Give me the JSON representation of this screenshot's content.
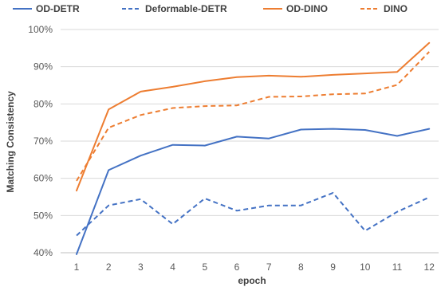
{
  "chart_data": {
    "type": "line",
    "xlabel": "epoch",
    "ylabel": "Matching Consistency",
    "x": [
      1,
      2,
      3,
      4,
      5,
      6,
      7,
      8,
      9,
      10,
      11,
      12
    ],
    "xtick_labels": [
      "1",
      "2",
      "3",
      "4",
      "5",
      "6",
      "7",
      "8",
      "9",
      "10",
      "11",
      "12"
    ],
    "ylim": [
      40,
      100
    ],
    "yticks": [
      40,
      50,
      60,
      70,
      80,
      90,
      100
    ],
    "ytick_labels": [
      "40%",
      "50%",
      "60%",
      "70%",
      "80%",
      "90%",
      "100%"
    ],
    "grid": "horizontal",
    "legend_position": "top",
    "series": [
      {
        "name": "OD-DETR",
        "color": "#4472C4",
        "dash": "solid",
        "values": [
          39.6,
          62.2,
          66.1,
          69.0,
          68.8,
          71.2,
          70.7,
          73.1,
          73.3,
          73.0,
          71.4,
          73.3
        ]
      },
      {
        "name": "Deformable-DETR",
        "color": "#4472C4",
        "dash": "dashed",
        "values": [
          44.6,
          52.7,
          54.4,
          47.7,
          54.6,
          51.3,
          52.7,
          52.7,
          56.1,
          45.9,
          51.0,
          54.9
        ]
      },
      {
        "name": "OD-DINO",
        "color": "#ED7D31",
        "dash": "solid",
        "values": [
          56.7,
          78.5,
          83.3,
          84.6,
          86.1,
          87.2,
          87.6,
          87.3,
          87.8,
          88.2,
          88.6,
          96.4
        ]
      },
      {
        "name": "DINO",
        "color": "#ED7D31",
        "dash": "dashed",
        "values": [
          59.3,
          73.6,
          77.0,
          78.9,
          79.4,
          79.6,
          81.9,
          82.0,
          82.6,
          82.8,
          85.1,
          94.0
        ]
      }
    ]
  }
}
